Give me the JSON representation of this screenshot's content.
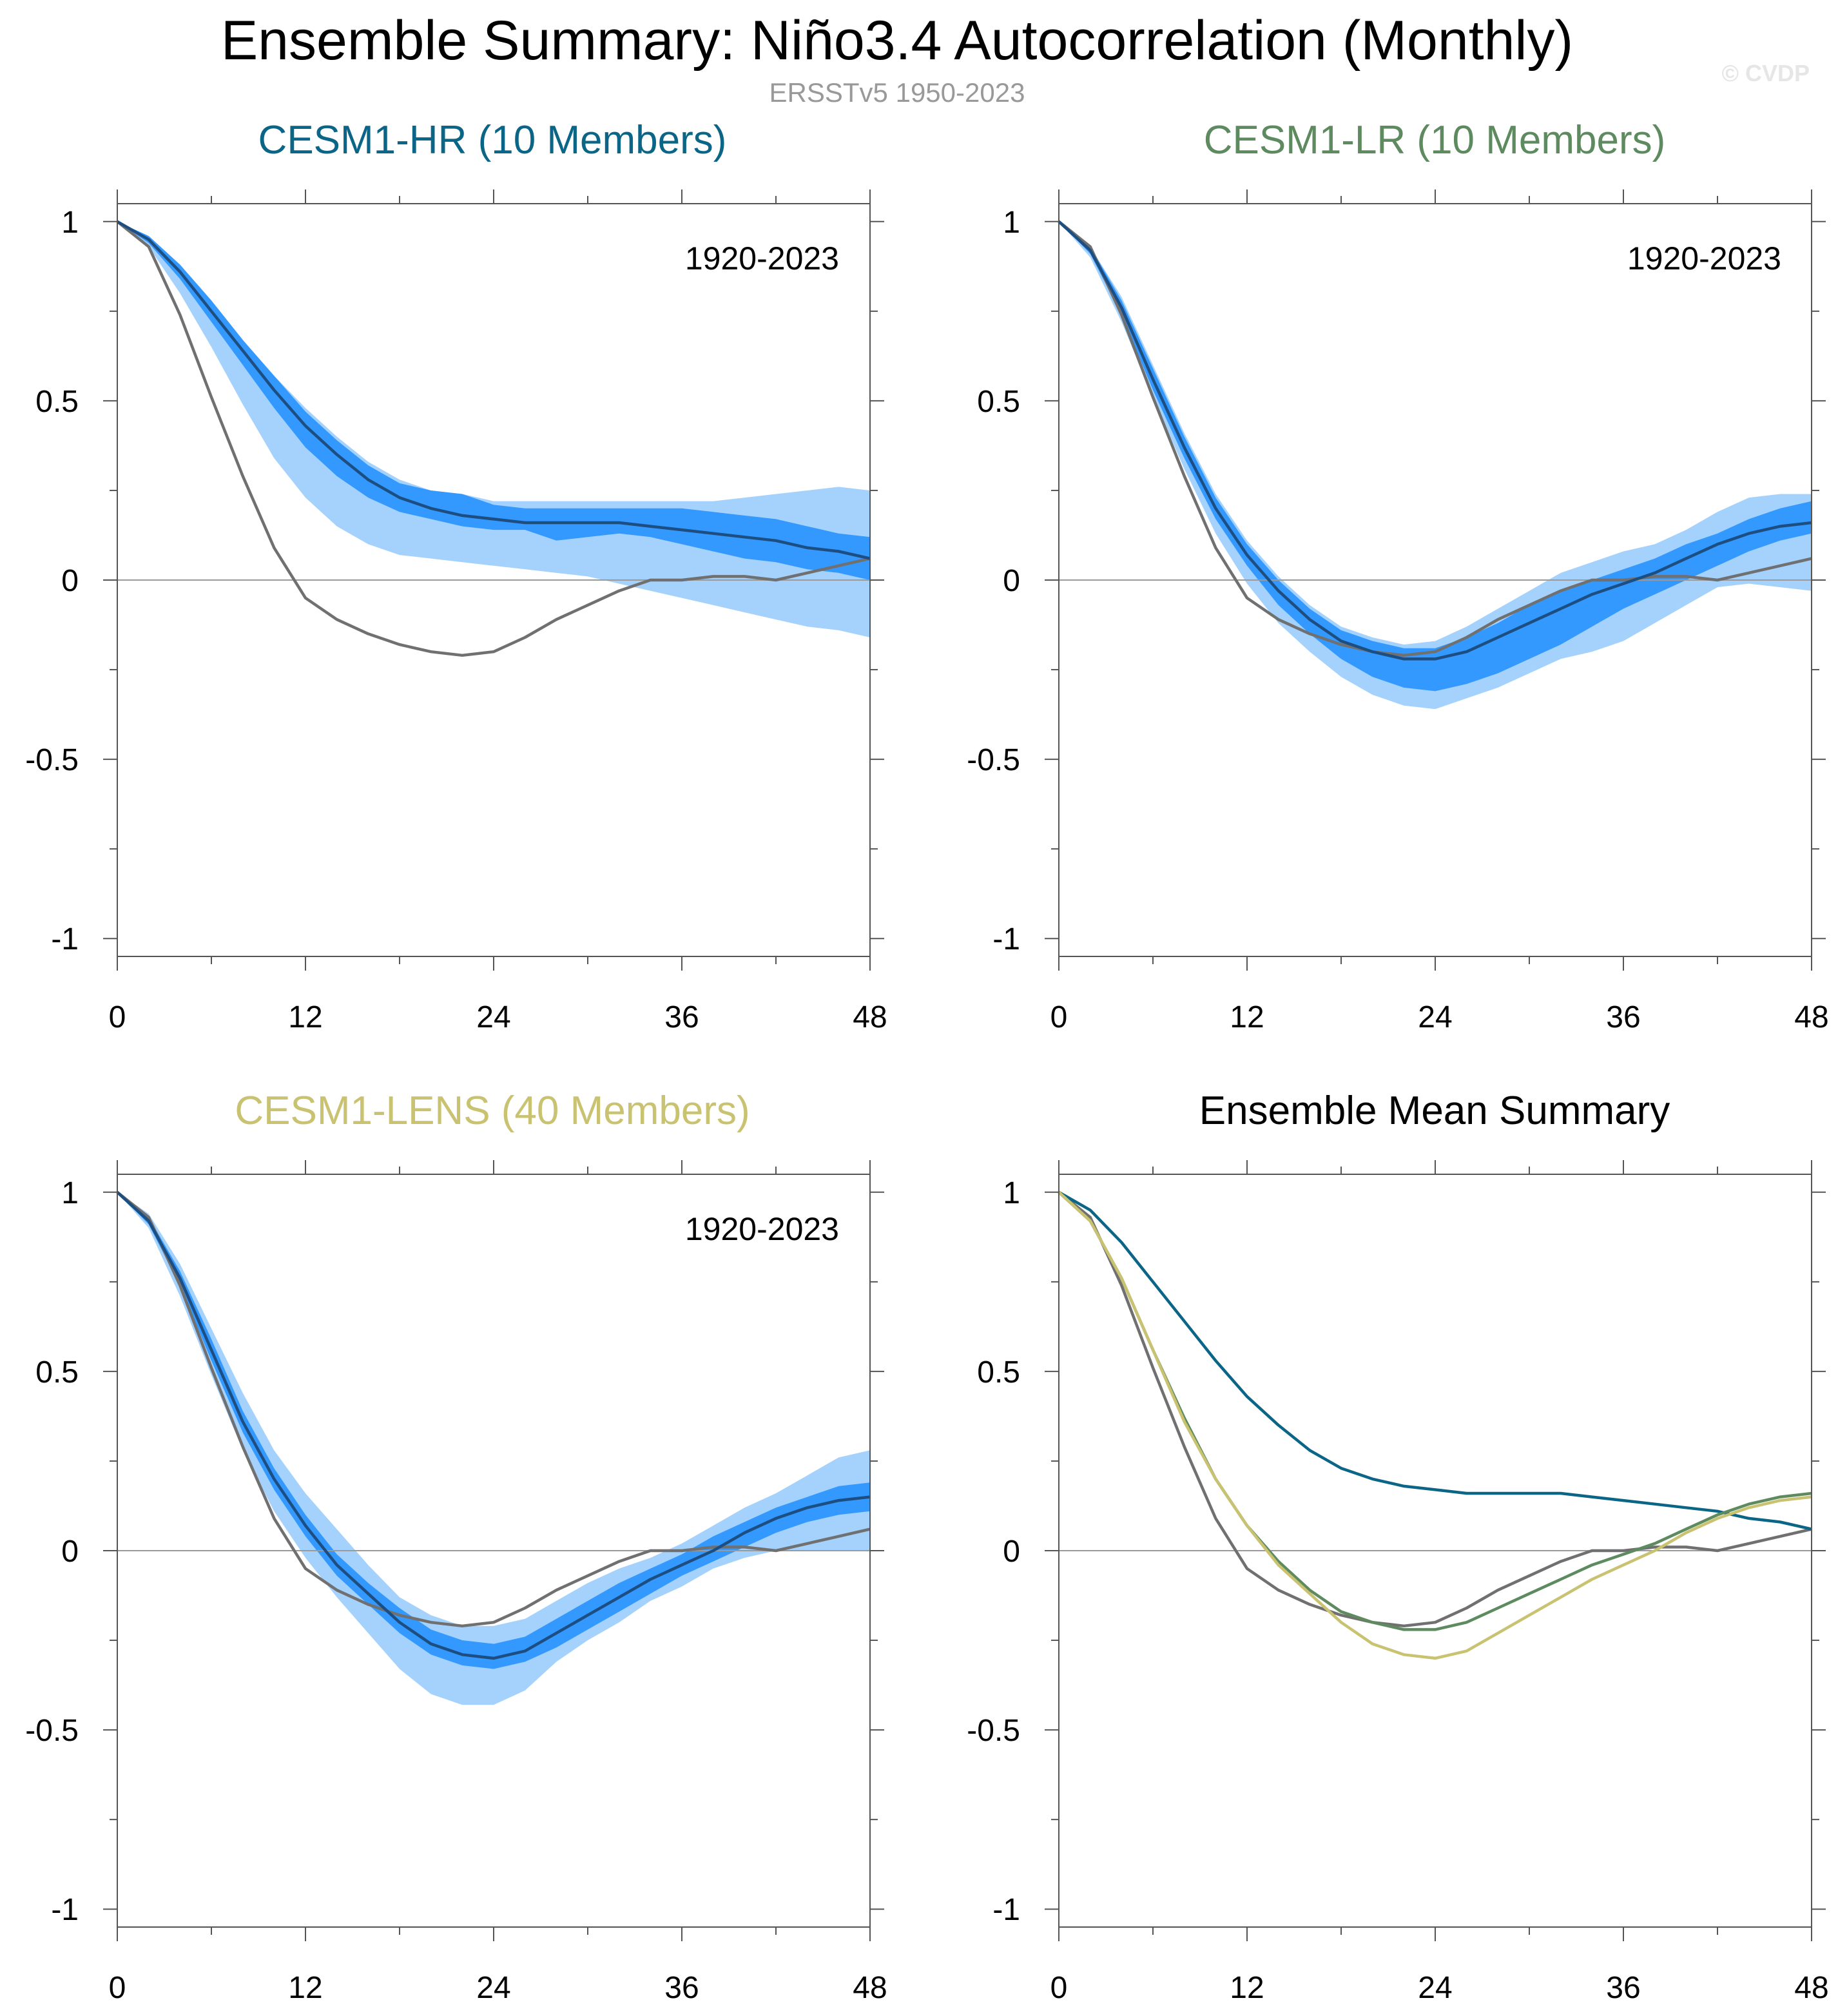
{
  "figure": {
    "title": "Ensemble Summary: Niño3.4 Autocorrelation (Monthly)",
    "subtitle": "ERSSTv5 1950-2023",
    "watermark": "© CVDP"
  },
  "colors": {
    "observed": "#707070",
    "hr": "#0B6587",
    "lr": "#5E8A60",
    "lens": "#C9C270",
    "ensemble_mean": "#1D4E82",
    "spread_inner": "#3399FF",
    "spread_outer": "#A4D2FC",
    "frame": "#555555",
    "zero_line": "#9a9a9a"
  },
  "chart_data": [
    {
      "type": "area",
      "title": "CESM1-HR (10 Members)",
      "title_color": "#0B6587",
      "period_label": "1920-2023",
      "xlim": [
        0,
        48
      ],
      "ylim": [
        -1.05,
        1.05
      ],
      "x_ticks": [
        0,
        12,
        24,
        36,
        48
      ],
      "y_ticks": [
        1,
        0.5,
        0,
        -0.5,
        -1
      ],
      "x_tick_labels": [
        "0",
        "12",
        "24",
        "36",
        "48"
      ],
      "y_tick_labels": [
        "1",
        "0.5",
        "0",
        "-0.5",
        "-1"
      ],
      "x": [
        0,
        2,
        4,
        6,
        8,
        10,
        12,
        14,
        16,
        18,
        20,
        22,
        24,
        26,
        28,
        30,
        32,
        34,
        36,
        38,
        40,
        42,
        44,
        46,
        48
      ],
      "observed": [
        1.0,
        0.93,
        0.74,
        0.51,
        0.29,
        0.09,
        -0.05,
        -0.11,
        -0.15,
        -0.18,
        -0.2,
        -0.21,
        -0.2,
        -0.16,
        -0.11,
        -0.07,
        -0.03,
        0.0,
        0.0,
        0.01,
        0.01,
        0.0,
        0.02,
        0.04,
        0.06
      ],
      "series": [
        {
          "name": "ensemble mean",
          "values": [
            1.0,
            0.95,
            0.86,
            0.75,
            0.64,
            0.53,
            0.43,
            0.35,
            0.28,
            0.23,
            0.2,
            0.18,
            0.17,
            0.16,
            0.16,
            0.16,
            0.16,
            0.15,
            0.14,
            0.13,
            0.12,
            0.11,
            0.09,
            0.08,
            0.06
          ]
        },
        {
          "name": "inner upper",
          "values": [
            1.0,
            0.96,
            0.88,
            0.78,
            0.67,
            0.57,
            0.47,
            0.39,
            0.32,
            0.27,
            0.25,
            0.24,
            0.21,
            0.2,
            0.2,
            0.2,
            0.2,
            0.2,
            0.2,
            0.19,
            0.18,
            0.17,
            0.15,
            0.13,
            0.12
          ]
        },
        {
          "name": "inner lower",
          "values": [
            1.0,
            0.94,
            0.84,
            0.72,
            0.6,
            0.48,
            0.37,
            0.29,
            0.23,
            0.19,
            0.17,
            0.15,
            0.14,
            0.14,
            0.11,
            0.12,
            0.13,
            0.12,
            0.1,
            0.08,
            0.06,
            0.05,
            0.03,
            0.02,
            0.0
          ]
        },
        {
          "name": "outer upper",
          "values": [
            1.0,
            0.96,
            0.88,
            0.78,
            0.67,
            0.57,
            0.48,
            0.4,
            0.33,
            0.28,
            0.25,
            0.24,
            0.22,
            0.22,
            0.22,
            0.22,
            0.22,
            0.22,
            0.22,
            0.22,
            0.23,
            0.24,
            0.25,
            0.26,
            0.25
          ]
        },
        {
          "name": "outer lower",
          "values": [
            1.0,
            0.93,
            0.8,
            0.65,
            0.49,
            0.34,
            0.23,
            0.15,
            0.1,
            0.07,
            0.06,
            0.05,
            0.04,
            0.03,
            0.02,
            0.01,
            -0.01,
            -0.03,
            -0.05,
            -0.07,
            -0.09,
            -0.11,
            -0.13,
            -0.14,
            -0.16
          ]
        }
      ]
    },
    {
      "type": "area",
      "title": "CESM1-LR (10 Members)",
      "title_color": "#5E8A60",
      "period_label": "1920-2023",
      "xlim": [
        0,
        48
      ],
      "ylim": [
        -1.05,
        1.05
      ],
      "x_ticks": [
        0,
        12,
        24,
        36,
        48
      ],
      "y_ticks": [
        1,
        0.5,
        0,
        -0.5,
        -1
      ],
      "x_tick_labels": [
        "0",
        "12",
        "24",
        "36",
        "48"
      ],
      "y_tick_labels": [
        "1",
        "0.5",
        "0",
        "-0.5",
        "-1"
      ],
      "x": [
        0,
        2,
        4,
        6,
        8,
        10,
        12,
        14,
        16,
        18,
        20,
        22,
        24,
        26,
        28,
        30,
        32,
        34,
        36,
        38,
        40,
        42,
        44,
        46,
        48
      ],
      "observed": [
        1.0,
        0.93,
        0.74,
        0.51,
        0.29,
        0.09,
        -0.05,
        -0.11,
        -0.15,
        -0.18,
        -0.2,
        -0.21,
        -0.2,
        -0.16,
        -0.11,
        -0.07,
        -0.03,
        0.0,
        0.0,
        0.01,
        0.01,
        0.0,
        0.02,
        0.04,
        0.06
      ],
      "series": [
        {
          "name": "ensemble mean",
          "values": [
            1.0,
            0.92,
            0.76,
            0.56,
            0.37,
            0.2,
            0.07,
            -0.03,
            -0.11,
            -0.17,
            -0.2,
            -0.22,
            -0.22,
            -0.2,
            -0.16,
            -0.12,
            -0.08,
            -0.04,
            -0.01,
            0.02,
            0.06,
            0.1,
            0.13,
            0.15,
            0.16
          ]
        },
        {
          "name": "inner upper",
          "values": [
            1.0,
            0.93,
            0.78,
            0.59,
            0.4,
            0.23,
            0.1,
            0.0,
            -0.08,
            -0.14,
            -0.17,
            -0.19,
            -0.19,
            -0.16,
            -0.12,
            -0.07,
            -0.03,
            0.0,
            0.03,
            0.06,
            0.1,
            0.13,
            0.17,
            0.2,
            0.22
          ]
        },
        {
          "name": "inner lower",
          "values": [
            1.0,
            0.91,
            0.74,
            0.53,
            0.34,
            0.17,
            0.04,
            -0.07,
            -0.15,
            -0.22,
            -0.27,
            -0.3,
            -0.31,
            -0.29,
            -0.26,
            -0.22,
            -0.18,
            -0.13,
            -0.08,
            -0.04,
            0.0,
            0.04,
            0.08,
            0.11,
            0.13
          ]
        },
        {
          "name": "outer upper",
          "values": [
            1.0,
            0.93,
            0.79,
            0.6,
            0.41,
            0.24,
            0.11,
            0.01,
            -0.07,
            -0.13,
            -0.16,
            -0.18,
            -0.17,
            -0.13,
            -0.08,
            -0.03,
            0.02,
            0.05,
            0.08,
            0.1,
            0.14,
            0.19,
            0.23,
            0.24,
            0.24
          ]
        },
        {
          "name": "outer lower",
          "values": [
            1.0,
            0.9,
            0.72,
            0.51,
            0.31,
            0.13,
            -0.01,
            -0.12,
            -0.2,
            -0.27,
            -0.32,
            -0.35,
            -0.36,
            -0.33,
            -0.3,
            -0.26,
            -0.22,
            -0.2,
            -0.17,
            -0.12,
            -0.07,
            -0.02,
            -0.01,
            -0.02,
            -0.03
          ]
        }
      ]
    },
    {
      "type": "area",
      "title": "CESM1-LENS (40 Members)",
      "title_color": "#C9C270",
      "period_label": "1920-2023",
      "xlim": [
        0,
        48
      ],
      "ylim": [
        -1.05,
        1.05
      ],
      "x_ticks": [
        0,
        12,
        24,
        36,
        48
      ],
      "y_ticks": [
        1,
        0.5,
        0,
        -0.5,
        -1
      ],
      "x_tick_labels": [
        "0",
        "12",
        "24",
        "36",
        "48"
      ],
      "y_tick_labels": [
        "1",
        "0.5",
        "0",
        "-0.5",
        "-1"
      ],
      "x": [
        0,
        2,
        4,
        6,
        8,
        10,
        12,
        14,
        16,
        18,
        20,
        22,
        24,
        26,
        28,
        30,
        32,
        34,
        36,
        38,
        40,
        42,
        44,
        46,
        48
      ],
      "observed": [
        1.0,
        0.93,
        0.74,
        0.51,
        0.29,
        0.09,
        -0.05,
        -0.11,
        -0.15,
        -0.18,
        -0.2,
        -0.21,
        -0.2,
        -0.16,
        -0.11,
        -0.07,
        -0.03,
        0.0,
        0.0,
        0.01,
        0.01,
        0.0,
        0.02,
        0.04,
        0.06
      ],
      "series": [
        {
          "name": "ensemble mean",
          "values": [
            1.0,
            0.92,
            0.76,
            0.56,
            0.36,
            0.2,
            0.07,
            -0.04,
            -0.12,
            -0.2,
            -0.26,
            -0.29,
            -0.3,
            -0.28,
            -0.23,
            -0.18,
            -0.13,
            -0.08,
            -0.04,
            0.0,
            0.05,
            0.09,
            0.12,
            0.14,
            0.15
          ]
        },
        {
          "name": "inner upper",
          "values": [
            1.0,
            0.93,
            0.78,
            0.59,
            0.39,
            0.23,
            0.1,
            -0.01,
            -0.09,
            -0.16,
            -0.22,
            -0.25,
            -0.26,
            -0.24,
            -0.19,
            -0.14,
            -0.09,
            -0.05,
            -0.01,
            0.04,
            0.08,
            0.12,
            0.15,
            0.18,
            0.19
          ]
        },
        {
          "name": "inner lower",
          "values": [
            1.0,
            0.91,
            0.74,
            0.53,
            0.33,
            0.17,
            0.04,
            -0.07,
            -0.15,
            -0.23,
            -0.29,
            -0.32,
            -0.33,
            -0.31,
            -0.27,
            -0.22,
            -0.17,
            -0.12,
            -0.07,
            -0.03,
            0.01,
            0.05,
            0.08,
            0.1,
            0.11
          ]
        },
        {
          "name": "outer upper",
          "values": [
            1.0,
            0.94,
            0.8,
            0.62,
            0.44,
            0.28,
            0.16,
            0.06,
            -0.04,
            -0.13,
            -0.18,
            -0.21,
            -0.21,
            -0.19,
            -0.14,
            -0.09,
            -0.05,
            -0.02,
            0.02,
            0.07,
            0.12,
            0.16,
            0.21,
            0.26,
            0.28
          ]
        },
        {
          "name": "outer lower",
          "values": [
            1.0,
            0.9,
            0.71,
            0.49,
            0.28,
            0.11,
            -0.02,
            -0.13,
            -0.23,
            -0.33,
            -0.4,
            -0.43,
            -0.43,
            -0.39,
            -0.31,
            -0.25,
            -0.2,
            -0.14,
            -0.1,
            -0.05,
            -0.02,
            0.0,
            0.0,
            0.0,
            0.0
          ]
        }
      ]
    },
    {
      "type": "line",
      "title": "Ensemble Mean Summary",
      "title_color": "#000000",
      "xlim": [
        0,
        48
      ],
      "ylim": [
        -1.05,
        1.05
      ],
      "x_ticks": [
        0,
        12,
        24,
        36,
        48
      ],
      "y_ticks": [
        1,
        0.5,
        0,
        -0.5,
        -1
      ],
      "x_tick_labels": [
        "0",
        "12",
        "24",
        "36",
        "48"
      ],
      "y_tick_labels": [
        "1",
        "0.5",
        "0",
        "-0.5",
        "-1"
      ],
      "x": [
        0,
        2,
        4,
        6,
        8,
        10,
        12,
        14,
        16,
        18,
        20,
        22,
        24,
        26,
        28,
        30,
        32,
        34,
        36,
        38,
        40,
        42,
        44,
        46,
        48
      ],
      "observed": [
        1.0,
        0.93,
        0.74,
        0.51,
        0.29,
        0.09,
        -0.05,
        -0.11,
        -0.15,
        -0.18,
        -0.2,
        -0.21,
        -0.2,
        -0.16,
        -0.11,
        -0.07,
        -0.03,
        0.0,
        0.0,
        0.01,
        0.01,
        0.0,
        0.02,
        0.04,
        0.06
      ],
      "series": [
        {
          "name": "CESM1-HR",
          "color": "#0B6587",
          "values": [
            1.0,
            0.95,
            0.86,
            0.75,
            0.64,
            0.53,
            0.43,
            0.35,
            0.28,
            0.23,
            0.2,
            0.18,
            0.17,
            0.16,
            0.16,
            0.16,
            0.16,
            0.15,
            0.14,
            0.13,
            0.12,
            0.11,
            0.09,
            0.08,
            0.06
          ]
        },
        {
          "name": "CESM1-LR",
          "color": "#5E8A60",
          "values": [
            1.0,
            0.92,
            0.76,
            0.56,
            0.37,
            0.2,
            0.07,
            -0.03,
            -0.11,
            -0.17,
            -0.2,
            -0.22,
            -0.22,
            -0.2,
            -0.16,
            -0.12,
            -0.08,
            -0.04,
            -0.01,
            0.02,
            0.06,
            0.1,
            0.13,
            0.15,
            0.16
          ]
        },
        {
          "name": "CESM1-LENS",
          "color": "#C9C270",
          "values": [
            1.0,
            0.92,
            0.76,
            0.56,
            0.36,
            0.2,
            0.07,
            -0.04,
            -0.12,
            -0.2,
            -0.26,
            -0.29,
            -0.3,
            -0.28,
            -0.23,
            -0.18,
            -0.13,
            -0.08,
            -0.04,
            0.0,
            0.05,
            0.09,
            0.12,
            0.14,
            0.15
          ]
        }
      ]
    }
  ]
}
